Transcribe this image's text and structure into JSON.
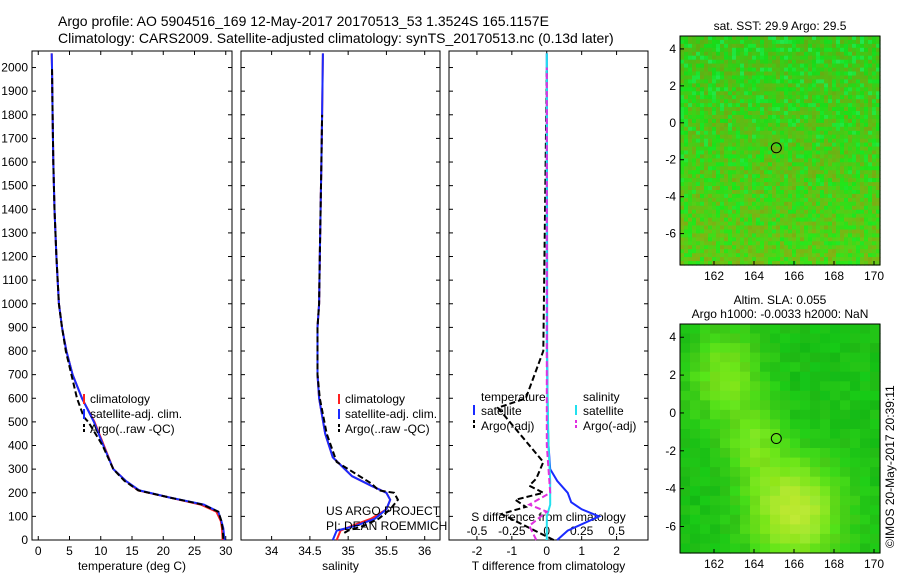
{
  "header": {
    "title_line1": "Argo profile: AO 5904516_169 12-May-2017 20170513_53 1.3524S 165.1157E",
    "title_line2": "Climatology: CARS2009. Satellite-adjusted climatology: synTS_20170513.nc (0.13d later)"
  },
  "copyright": "©IMOS 20-May-2017 20:39:11",
  "colors": {
    "climatology": "#ff2020",
    "satellite": "#1a2bff",
    "argo": "#000000",
    "satellite_salinity": "#22e0ee",
    "argo_salinity_adj": "#e030e0"
  },
  "chart_data": [
    {
      "type": "line",
      "panel": "temperature",
      "xlabel": "temperature (deg C)",
      "ylabel": "",
      "xlim": [
        -1,
        31
      ],
      "ylim": [
        2070,
        0
      ],
      "xticks": [
        "0",
        "5",
        "10",
        "15",
        "20",
        "25",
        "30"
      ],
      "xtick_values": [
        0,
        5,
        10,
        15,
        20,
        25,
        30
      ],
      "yticks": [
        "0",
        "100",
        "200",
        "300",
        "400",
        "500",
        "600",
        "700",
        "800",
        "900",
        "1000",
        "1100",
        "1200",
        "1300",
        "1400",
        "1500",
        "1600",
        "1700",
        "1800",
        "1900",
        "2000"
      ],
      "ytick_values": [
        0,
        100,
        200,
        300,
        400,
        500,
        600,
        700,
        800,
        900,
        1000,
        1100,
        1200,
        1300,
        1400,
        1500,
        1600,
        1700,
        1800,
        1900,
        2000
      ],
      "legend": [
        "climatology",
        "satellite-adj. clim.",
        "Argo(..raw -QC)"
      ],
      "series": [
        {
          "name": "climatology",
          "x": [
            29.5,
            29.4,
            29.2,
            28.5,
            26,
            21,
            16,
            14,
            12,
            10.5,
            9,
            7,
            5.5,
            4.5,
            3.8,
            3.3,
            2.9,
            2.6,
            2.4,
            2.3,
            2.2,
            2.15
          ],
          "y": [
            0,
            50,
            80,
            120,
            150,
            180,
            210,
            250,
            300,
            400,
            500,
            600,
            700,
            800,
            900,
            1000,
            1200,
            1400,
            1600,
            1800,
            2000,
            2060
          ]
        },
        {
          "name": "satellite-adj. clim.",
          "x": [
            29.8,
            29.6,
            29.3,
            28.8,
            26.5,
            21,
            16.2,
            14,
            12,
            10.4,
            8.9,
            7,
            5.5,
            4.5,
            3.8,
            3.3,
            2.9,
            2.6,
            2.4,
            2.3,
            2.2,
            2.15
          ],
          "y": [
            0,
            50,
            80,
            120,
            150,
            180,
            210,
            250,
            300,
            400,
            500,
            600,
            700,
            800,
            900,
            1000,
            1200,
            1400,
            1600,
            1800,
            2000,
            2060
          ]
        },
        {
          "name": "Argo(..raw -QC)",
          "x": [
            29.6,
            29.5,
            29.3,
            28.8,
            26.3,
            21,
            16,
            13.8,
            12,
            10.3,
            8,
            7.3,
            6.2,
            5.3,
            4.4,
            3.8,
            3.3,
            2.9,
            2.6,
            2.4,
            2.3,
            2.2
          ],
          "y": [
            5,
            50,
            80,
            120,
            150,
            180,
            210,
            250,
            300,
            400,
            500,
            520,
            600,
            700,
            800,
            900,
            1000,
            1200,
            1400,
            1600,
            1800,
            2000
          ]
        }
      ]
    },
    {
      "type": "line",
      "panel": "salinity",
      "xlabel": "salinity",
      "ylabel": "",
      "xlim": [
        33.6,
        36.2
      ],
      "ylim": [
        2070,
        0
      ],
      "xticks": [
        "34",
        "34.5",
        "35",
        "35.5",
        "36"
      ],
      "xtick_values": [
        34,
        34.5,
        35,
        35.5,
        36
      ],
      "legend": [
        "climatology",
        "satellite-adj. clim.",
        "Argo(..raw -QC)"
      ],
      "annotation": [
        "US ARGO PROJECT",
        "PI: DEAN ROEMMICH"
      ],
      "series": [
        {
          "name": "climatology",
          "x": [
            34.85,
            34.9,
            35.05,
            35.3,
            35.5,
            35.55,
            35.5,
            35.3,
            35.05,
            34.8,
            34.7,
            34.62,
            34.6,
            34.6,
            34.6,
            34.62,
            34.63,
            34.64,
            34.65,
            34.66,
            34.67
          ],
          "y": [
            0,
            40,
            60,
            90,
            130,
            170,
            200,
            230,
            270,
            350,
            450,
            600,
            700,
            800,
            900,
            1000,
            1200,
            1400,
            1600,
            1800,
            2060
          ]
        },
        {
          "name": "satellite-adj. clim.",
          "x": [
            34.8,
            34.85,
            35.1,
            35.35,
            35.5,
            35.55,
            35.5,
            35.3,
            35.05,
            34.8,
            34.7,
            34.62,
            34.6,
            34.6,
            34.6,
            34.62,
            34.63,
            34.64,
            34.65,
            34.66,
            34.67
          ],
          "y": [
            0,
            40,
            60,
            90,
            130,
            170,
            200,
            230,
            270,
            350,
            450,
            600,
            700,
            800,
            900,
            1000,
            1200,
            1400,
            1600,
            1800,
            2060
          ]
        },
        {
          "name": "Argo(..raw -QC)",
          "x": [
            34.95,
            35.0,
            35.2,
            35.4,
            35.55,
            35.65,
            35.6,
            35.4,
            35.3,
            34.85,
            34.72,
            34.63,
            34.6,
            34.6,
            34.6,
            34.62,
            34.63,
            34.64,
            34.65,
            34.66
          ],
          "y": [
            30,
            40,
            60,
            90,
            130,
            170,
            200,
            210,
            240,
            330,
            450,
            600,
            700,
            800,
            900,
            1000,
            1200,
            1400,
            1600,
            1800
          ]
        }
      ]
    },
    {
      "type": "line",
      "panel": "difference",
      "xlabel": "T difference from climatology",
      "x2label": "S difference from climatology",
      "xlim": [
        -2.8,
        2.9
      ],
      "ylim": [
        2070,
        0
      ],
      "xticks": [
        "-2",
        "-1",
        "0",
        "1",
        "2"
      ],
      "xtick_values": [
        -2,
        -1,
        0,
        1,
        2
      ],
      "x2ticks": [
        "-0.5",
        "-0.25",
        "0",
        "0.25",
        "0.5"
      ],
      "x2tick_values": [
        -0.5,
        -0.25,
        0,
        0.25,
        0.5
      ],
      "legend": [
        "temperature",
        "satellite",
        "Argo(-adj)",
        "salinity",
        "satellite",
        "Argo(-adj)"
      ],
      "series": [
        {
          "name": "satellite",
          "x": [
            0.3,
            0.6,
            1.5,
            1,
            0.7,
            0.6,
            0.3,
            0.1,
            0.05,
            0.03,
            0.02,
            0.01,
            0.01,
            0
          ],
          "y": [
            0,
            40,
            100,
            130,
            160,
            200,
            250,
            300,
            400,
            500,
            600,
            800,
            1200,
            2060
          ]
        },
        {
          "name": "Argo(-adj)",
          "x": [
            0.2,
            -1.3,
            -0.6,
            -0.9,
            -0.1,
            -0.5,
            -0.3,
            -0.1,
            -1.4,
            -0.6,
            -0.1,
            0
          ],
          "y": [
            0,
            110,
            140,
            170,
            200,
            230,
            260,
            330,
            560,
            600,
            800,
            2000
          ]
        },
        {
          "name": "satellite",
          "x": [
            0,
            0,
            0.1,
            0.1,
            0.05,
            0,
            0
          ],
          "y": [
            0,
            100,
            150,
            250,
            400,
            800,
            2060
          ]
        },
        {
          "name": "Argo(-adj)",
          "x": [
            -0.3,
            -0.5,
            0,
            -0.5,
            0.1,
            0,
            0
          ],
          "y": [
            0,
            60,
            120,
            150,
            200,
            400,
            2000
          ]
        }
      ]
    },
    {
      "type": "heatmap",
      "panel": "sst_map",
      "title": "sat. SST: 29.9 Argo: 29.5",
      "xlim": [
        160.3,
        170.3
      ],
      "ylim": [
        -7.7,
        4.7
      ],
      "xticks": [
        "162",
        "164",
        "166",
        "168",
        "170"
      ],
      "xtick_values": [
        162,
        164,
        166,
        168,
        170
      ],
      "yticks": [
        "4",
        "2",
        "0",
        "-2",
        "-4",
        "-6"
      ],
      "ytick_values": [
        4,
        2,
        0,
        -2,
        -4,
        -6
      ],
      "marker": {
        "lon": 165.1157,
        "lat": -1.3524
      }
    },
    {
      "type": "heatmap",
      "panel": "sla_map",
      "title": [
        "Altim. SLA: 0.055",
        "Argo h1000: -0.0033 h2000: NaN"
      ],
      "xlim": [
        160.3,
        170.3
      ],
      "ylim": [
        -7.4,
        4.7
      ],
      "xticks": [
        "162",
        "164",
        "166",
        "168",
        "170"
      ],
      "xtick_values": [
        162,
        164,
        166,
        168,
        170
      ],
      "yticks": [
        "4",
        "2",
        "0",
        "-2",
        "-4",
        "-6"
      ],
      "ytick_values": [
        4,
        2,
        0,
        -2,
        -4,
        -6
      ],
      "marker": {
        "lon": 165.1157,
        "lat": -1.3524
      }
    }
  ]
}
